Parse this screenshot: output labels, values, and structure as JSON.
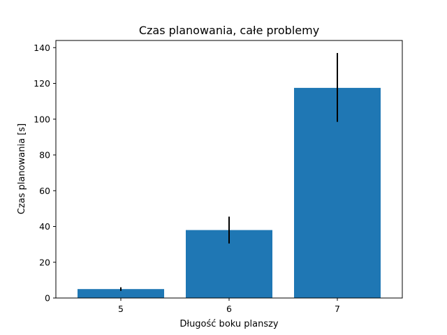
{
  "chart_data": {
    "type": "bar",
    "title": "Czas planowania, całe problemy",
    "xlabel": "Długość boku planszy",
    "ylabel": "Czas planowania [s]",
    "categories": [
      "5",
      "6",
      "7"
    ],
    "values": [
      5,
      38,
      117.5
    ],
    "error_low": [
      4,
      30.5,
      98.5
    ],
    "error_high": [
      6,
      45.5,
      137
    ],
    "ylim": [
      0,
      144
    ],
    "yticks": [
      0,
      20,
      40,
      60,
      80,
      100,
      120,
      140
    ],
    "grid": false,
    "bar_color": "#1f77b4",
    "error_color": "#000000"
  }
}
